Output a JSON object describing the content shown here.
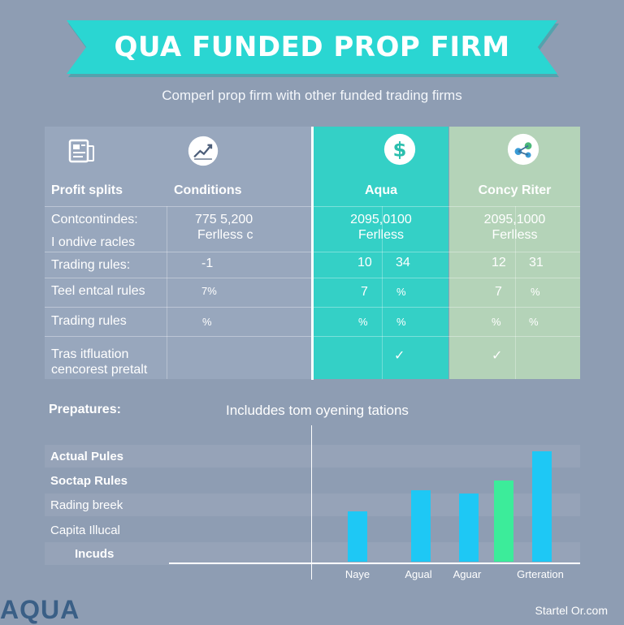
{
  "header": {
    "title": "QUA FUNDED PROP FIRM",
    "subtitle": "Comperl prop firm with other funded trading firms"
  },
  "table": {
    "icons": [
      "document-icon",
      "chart-growth-icon",
      "dollar-icon",
      "network-icon"
    ],
    "headers": [
      "Profit splits",
      "Conditions",
      "Aqua",
      "Concy Riter"
    ],
    "rows": [
      {
        "label": "Contcontindes:",
        "label2": "I ondive racles",
        "cond": "775 5,200",
        "cond2": "Ferlless  c",
        "aqua": "2095,0100",
        "aqua2": "Ferlless",
        "other": "2095,1000",
        "other2": "Ferlless"
      },
      {
        "label": "Trading rules:",
        "cond": "-1",
        "aqua_a": "10",
        "aqua_b": "34",
        "other_a": "12",
        "other_b": "31"
      },
      {
        "label": "Teel entcal rules",
        "cond": "7%",
        "aqua_a": "7",
        "aqua_b": "%",
        "other_a": "7",
        "other_b": "%"
      },
      {
        "label": "Trading rules",
        "cond": "%",
        "aqua_a": "%",
        "aqua_b": "%",
        "other_a": "%",
        "other_b": "%"
      },
      {
        "label": "Tras itfluation",
        "label2": "cencorest pretalt",
        "aqua_check": "✓",
        "other_check": "✓"
      }
    ]
  },
  "lower": {
    "left_header": "Prepatures:",
    "chart_title": "Includdes tom oyening tations",
    "items": [
      "Actual Pules",
      "Soctap Rules",
      "Rading breek",
      "Capita Illucal",
      "Incuds"
    ]
  },
  "chart_data": {
    "type": "bar",
    "categories": [
      "Naye",
      "Agual",
      "Aguar",
      "Grteration"
    ],
    "bars": [
      {
        "x_label_index": 0,
        "value": 66,
        "color": "#1ec8f5"
      },
      {
        "x_label_index": 1,
        "value": 94,
        "color": "#1ec8f5"
      },
      {
        "x_label_index": 2,
        "value": 90,
        "color": "#1ec8f5"
      },
      {
        "x_label_index": 3,
        "value": 107,
        "color": "#3cec9a"
      },
      {
        "x_label_index": 3,
        "value": 145,
        "color": "#1ec8f5"
      }
    ],
    "ylim": [
      0,
      160
    ],
    "xlabel": "",
    "ylabel": "",
    "title": ""
  },
  "footer": {
    "logo": "AQUA",
    "url": "Startel Or.com"
  }
}
